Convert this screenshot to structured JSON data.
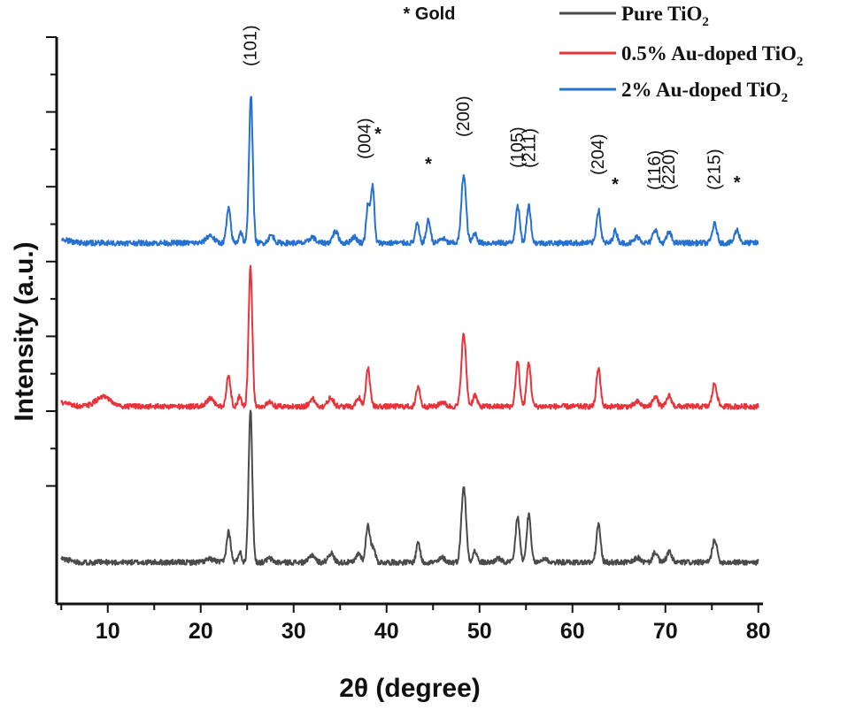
{
  "chart_data": {
    "type": "line",
    "title": "",
    "xlabel": "2θ (degree)",
    "ylabel": "Intensity (a.u.)",
    "xlim": [
      4.5,
      80.5
    ],
    "x_ticks": [
      10,
      20,
      30,
      40,
      50,
      60,
      70,
      80
    ],
    "y_ticks_labeled": false,
    "annotation_note": "* Gold",
    "legend_position": "top-right",
    "series": [
      {
        "name": "Pure TiO2",
        "legend_main": "Pure TiO",
        "legend_sub": "2",
        "color": "#4a4a4a",
        "baseline": 0.0,
        "peaks": [
          {
            "x": 21.0,
            "h": 0.04,
            "w": 0.5
          },
          {
            "x": 23.0,
            "h": 0.4,
            "w": 0.22
          },
          {
            "x": 24.2,
            "h": 0.14,
            "w": 0.18
          },
          {
            "x": 25.35,
            "h": 2.0,
            "w": 0.2
          },
          {
            "x": 27.4,
            "h": 0.05,
            "w": 0.3
          },
          {
            "x": 32.0,
            "h": 0.1,
            "w": 0.3
          },
          {
            "x": 34.0,
            "h": 0.12,
            "w": 0.3
          },
          {
            "x": 37.0,
            "h": 0.12,
            "w": 0.25
          },
          {
            "x": 38.0,
            "h": 0.5,
            "w": 0.22
          },
          {
            "x": 38.6,
            "h": 0.2,
            "w": 0.2
          },
          {
            "x": 43.4,
            "h": 0.27,
            "w": 0.2
          },
          {
            "x": 46.0,
            "h": 0.06,
            "w": 0.3
          },
          {
            "x": 48.3,
            "h": 1.0,
            "w": 0.25
          },
          {
            "x": 49.5,
            "h": 0.15,
            "w": 0.22
          },
          {
            "x": 52.0,
            "h": 0.05,
            "w": 0.3
          },
          {
            "x": 54.1,
            "h": 0.6,
            "w": 0.22
          },
          {
            "x": 55.3,
            "h": 0.62,
            "w": 0.22
          },
          {
            "x": 57.0,
            "h": 0.05,
            "w": 0.3
          },
          {
            "x": 62.8,
            "h": 0.5,
            "w": 0.22
          },
          {
            "x": 67.0,
            "h": 0.06,
            "w": 0.3
          },
          {
            "x": 68.9,
            "h": 0.14,
            "w": 0.25
          },
          {
            "x": 70.4,
            "h": 0.14,
            "w": 0.25
          },
          {
            "x": 75.3,
            "h": 0.3,
            "w": 0.25
          }
        ]
      },
      {
        "name": "0.5% Au-doped TiO2",
        "legend_main": "0.5% Au-doped TiO",
        "legend_sub": "2",
        "color": "#e8333b",
        "baseline": 2.05,
        "peaks": [
          {
            "x": 9.5,
            "h": 0.12,
            "w": 0.8
          },
          {
            "x": 21.0,
            "h": 0.1,
            "w": 0.4
          },
          {
            "x": 23.0,
            "h": 0.4,
            "w": 0.22
          },
          {
            "x": 24.2,
            "h": 0.14,
            "w": 0.18
          },
          {
            "x": 25.35,
            "h": 1.85,
            "w": 0.2
          },
          {
            "x": 27.4,
            "h": 0.05,
            "w": 0.3
          },
          {
            "x": 32.0,
            "h": 0.1,
            "w": 0.3
          },
          {
            "x": 34.0,
            "h": 0.12,
            "w": 0.3
          },
          {
            "x": 37.0,
            "h": 0.12,
            "w": 0.25
          },
          {
            "x": 38.0,
            "h": 0.5,
            "w": 0.22
          },
          {
            "x": 43.4,
            "h": 0.27,
            "w": 0.2
          },
          {
            "x": 46.0,
            "h": 0.06,
            "w": 0.3
          },
          {
            "x": 48.3,
            "h": 0.95,
            "w": 0.25
          },
          {
            "x": 49.5,
            "h": 0.15,
            "w": 0.22
          },
          {
            "x": 54.1,
            "h": 0.58,
            "w": 0.22
          },
          {
            "x": 55.3,
            "h": 0.58,
            "w": 0.22
          },
          {
            "x": 62.8,
            "h": 0.5,
            "w": 0.22
          },
          {
            "x": 67.0,
            "h": 0.06,
            "w": 0.3
          },
          {
            "x": 68.9,
            "h": 0.14,
            "w": 0.25
          },
          {
            "x": 70.4,
            "h": 0.14,
            "w": 0.25
          },
          {
            "x": 75.3,
            "h": 0.3,
            "w": 0.25
          }
        ]
      },
      {
        "name": "2% Au-doped TiO2",
        "legend_main": "2% Au-doped TiO",
        "legend_sub": "2",
        "color": "#2670d0",
        "baseline": 4.2,
        "peaks": [
          {
            "x": 21.0,
            "h": 0.1,
            "w": 0.4
          },
          {
            "x": 23.0,
            "h": 0.45,
            "w": 0.22
          },
          {
            "x": 24.3,
            "h": 0.15,
            "w": 0.18
          },
          {
            "x": 25.4,
            "h": 1.95,
            "w": 0.2
          },
          {
            "x": 27.6,
            "h": 0.1,
            "w": 0.3
          },
          {
            "x": 32.0,
            "h": 0.08,
            "w": 0.3
          },
          {
            "x": 34.5,
            "h": 0.15,
            "w": 0.3
          },
          {
            "x": 36.5,
            "h": 0.08,
            "w": 0.3
          },
          {
            "x": 38.0,
            "h": 0.5,
            "w": 0.2
          },
          {
            "x": 38.5,
            "h": 0.75,
            "w": 0.18
          },
          {
            "x": 43.3,
            "h": 0.25,
            "w": 0.2
          },
          {
            "x": 44.5,
            "h": 0.3,
            "w": 0.22
          },
          {
            "x": 46.0,
            "h": 0.06,
            "w": 0.3
          },
          {
            "x": 48.3,
            "h": 0.9,
            "w": 0.25
          },
          {
            "x": 49.5,
            "h": 0.13,
            "w": 0.22
          },
          {
            "x": 54.1,
            "h": 0.5,
            "w": 0.22
          },
          {
            "x": 55.3,
            "h": 0.5,
            "w": 0.22
          },
          {
            "x": 62.8,
            "h": 0.43,
            "w": 0.22
          },
          {
            "x": 64.6,
            "h": 0.16,
            "w": 0.22
          },
          {
            "x": 67.0,
            "h": 0.08,
            "w": 0.3
          },
          {
            "x": 68.9,
            "h": 0.18,
            "w": 0.25
          },
          {
            "x": 70.4,
            "h": 0.14,
            "w": 0.25
          },
          {
            "x": 75.3,
            "h": 0.25,
            "w": 0.25
          },
          {
            "x": 77.7,
            "h": 0.17,
            "w": 0.25
          }
        ]
      }
    ],
    "peak_labels": [
      {
        "text": "(101)",
        "x": 25.4
      },
      {
        "text": "(004)",
        "x": 37.7
      },
      {
        "text": "(200)",
        "x": 48.3
      },
      {
        "text": "(105)",
        "x": 54.1
      },
      {
        "text": "(211)",
        "x": 55.4
      },
      {
        "text": "(204)",
        "x": 62.8
      },
      {
        "text": "(116)",
        "x": 68.9
      },
      {
        "text": "(220)",
        "x": 70.4
      },
      {
        "text": "(215)",
        "x": 75.3
      }
    ],
    "gold_stars": [
      {
        "text": "*",
        "x": 38.5
      },
      {
        "text": "*",
        "x": 44.5
      },
      {
        "text": "*",
        "x": 64.6
      },
      {
        "text": "*",
        "x": 77.7
      }
    ]
  }
}
